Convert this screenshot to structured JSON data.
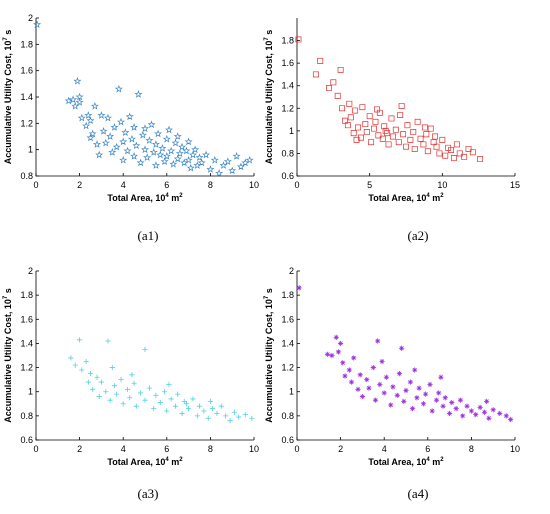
{
  "chart_data": [
    {
      "type": "scatter",
      "caption": "(a1)",
      "xlabel": "Total Area, 10",
      "xlabel_sup": "4",
      "xlabel_unit": " m",
      "xlabel_unit_sup": "2",
      "ylabel": "Accumulative Utility Cost, 10",
      "ylabel_sup": "7",
      "ylabel_unit": " s",
      "xlim": [
        0,
        10
      ],
      "ylim": [
        0.8,
        2
      ],
      "xticks": [
        0,
        2,
        4,
        6,
        8,
        10
      ],
      "xtick_labels": [
        "0",
        "2",
        "4",
        "6",
        "8",
        "10"
      ],
      "yticks": [
        0.8,
        1,
        1.2,
        1.4,
        1.6,
        1.8,
        2
      ],
      "ytick_labels": [
        "0.8",
        "1",
        "1.2",
        "1.4",
        "1.6",
        "1.8",
        "2"
      ],
      "marker": "star",
      "color": "#3a87c8",
      "grid": false,
      "points": [
        [
          0.05,
          1.95
        ],
        [
          1.5,
          1.37
        ],
        [
          1.7,
          1.38
        ],
        [
          1.8,
          1.33
        ],
        [
          1.9,
          1.52
        ],
        [
          2.0,
          1.4
        ],
        [
          2.0,
          1.36
        ],
        [
          2.1,
          1.24
        ],
        [
          2.3,
          1.18
        ],
        [
          2.4,
          1.26
        ],
        [
          2.5,
          1.22
        ],
        [
          2.5,
          1.09
        ],
        [
          2.6,
          1.12
        ],
        [
          2.7,
          1.33
        ],
        [
          2.8,
          1.04
        ],
        [
          2.9,
          0.96
        ],
        [
          3.0,
          1.26
        ],
        [
          3.1,
          1.14
        ],
        [
          3.2,
          1.05
        ],
        [
          3.3,
          1.24
        ],
        [
          3.4,
          1.1
        ],
        [
          3.5,
          0.98
        ],
        [
          3.6,
          1.17
        ],
        [
          3.7,
          1.02
        ],
        [
          3.8,
          1.46
        ],
        [
          3.9,
          1.21
        ],
        [
          4.0,
          0.92
        ],
        [
          4.0,
          1.06
        ],
        [
          4.1,
          1.13
        ],
        [
          4.2,
          0.99
        ],
        [
          4.3,
          1.25
        ],
        [
          4.4,
          1.08
        ],
        [
          4.5,
          0.95
        ],
        [
          4.5,
          1.17
        ],
        [
          4.6,
          1.03
        ],
        [
          4.7,
          1.42
        ],
        [
          4.8,
          0.9
        ],
        [
          4.9,
          1.11
        ],
        [
          5.0,
          1.0
        ],
        [
          5.0,
          1.16
        ],
        [
          5.1,
          0.94
        ],
        [
          5.2,
          1.07
        ],
        [
          5.3,
          1.19
        ],
        [
          5.4,
          0.98
        ],
        [
          5.5,
          1.04
        ],
        [
          5.5,
          0.88
        ],
        [
          5.6,
          1.12
        ],
        [
          5.7,
          0.96
        ],
        [
          5.8,
          1.01
        ],
        [
          5.9,
          0.91
        ],
        [
          6.0,
          1.08
        ],
        [
          6.0,
          0.95
        ],
        [
          6.1,
          1.15
        ],
        [
          6.2,
          0.99
        ],
        [
          6.3,
          0.89
        ],
        [
          6.4,
          1.05
        ],
        [
          6.5,
          0.93
        ],
        [
          6.5,
          1.1
        ],
        [
          6.6,
          0.97
        ],
        [
          6.7,
          1.02
        ],
        [
          6.8,
          0.9
        ],
        [
          6.9,
          0.99
        ],
        [
          7.0,
          1.06
        ],
        [
          7.0,
          0.92
        ],
        [
          7.1,
          0.86
        ],
        [
          7.2,
          0.96
        ],
        [
          7.3,
          1.0
        ],
        [
          7.4,
          0.88
        ],
        [
          7.5,
          0.94
        ],
        [
          7.6,
          0.9
        ],
        [
          7.8,
          0.96
        ],
        [
          8.0,
          0.85
        ],
        [
          8.2,
          0.92
        ],
        [
          8.4,
          0.82
        ],
        [
          8.6,
          0.88
        ],
        [
          8.8,
          0.91
        ],
        [
          9.0,
          0.84
        ],
        [
          9.2,
          0.95
        ],
        [
          9.4,
          0.87
        ],
        [
          9.6,
          0.9
        ],
        [
          9.8,
          0.92
        ]
      ]
    },
    {
      "type": "scatter",
      "caption": "(a2)",
      "xlabel": "Total Area, 10",
      "xlabel_sup": "4",
      "xlabel_unit": " m",
      "xlabel_unit_sup": "2",
      "ylabel": "Accumulative Utility Cost, 10",
      "ylabel_sup": "7",
      "ylabel_unit": " s",
      "xlim": [
        0,
        15
      ],
      "ylim": [
        0.6,
        2
      ],
      "xticks": [
        0,
        5,
        10,
        15
      ],
      "xtick_labels": [
        "0",
        "5",
        "10",
        "15"
      ],
      "yticks": [
        0.6,
        0.8,
        1,
        1.2,
        1.4,
        1.6,
        1.8
      ],
      "ytick_labels": [
        "0.6",
        "0.8",
        "1",
        "1.2",
        "1.4",
        "1.6",
        "1.8"
      ],
      "marker": "square",
      "color": "#e03030",
      "grid": false,
      "points": [
        [
          0.1,
          1.81
        ],
        [
          1.3,
          1.5
        ],
        [
          1.6,
          1.62
        ],
        [
          2.5,
          1.43
        ],
        [
          2.8,
          1.31
        ],
        [
          3.0,
          1.54
        ],
        [
          3.1,
          1.2
        ],
        [
          3.3,
          1.09
        ],
        [
          3.5,
          1.05
        ],
        [
          3.7,
          1.12
        ],
        [
          3.9,
          0.98
        ],
        [
          4.0,
          1.18
        ],
        [
          4.2,
          1.03
        ],
        [
          4.4,
          0.94
        ],
        [
          4.5,
          1.21
        ],
        [
          4.7,
          1.06
        ],
        [
          4.8,
          0.99
        ],
        [
          5.0,
          1.13
        ],
        [
          5.1,
          0.9
        ],
        [
          5.3,
          1.02
        ],
        [
          5.4,
          1.08
        ],
        [
          5.6,
          0.96
        ],
        [
          5.7,
          1.16
        ],
        [
          5.9,
          0.93
        ],
        [
          6.0,
          1.04
        ],
        [
          6.2,
          0.98
        ],
        [
          6.3,
          0.88
        ],
        [
          6.5,
          1.11
        ],
        [
          6.6,
          0.95
        ],
        [
          6.8,
          1.01
        ],
        [
          7.0,
          0.9
        ],
        [
          7.1,
          1.14
        ],
        [
          7.3,
          0.97
        ],
        [
          7.5,
          0.86
        ],
        [
          7.6,
          1.05
        ],
        [
          7.8,
          0.92
        ],
        [
          8.0,
          0.99
        ],
        [
          8.1,
          0.84
        ],
        [
          8.3,
          1.08
        ],
        [
          8.5,
          0.93
        ],
        [
          8.7,
          0.88
        ],
        [
          8.9,
          0.97
        ],
        [
          9.0,
          0.82
        ],
        [
          9.2,
          1.02
        ],
        [
          9.4,
          0.9
        ],
        [
          9.6,
          0.86
        ],
        [
          9.8,
          0.8
        ],
        [
          10.0,
          0.92
        ],
        [
          10.2,
          0.78
        ],
        [
          10.4,
          0.85
        ],
        [
          10.6,
          0.83
        ],
        [
          10.8,
          0.76
        ],
        [
          11.0,
          0.88
        ],
        [
          11.2,
          0.8
        ],
        [
          11.5,
          0.77
        ],
        [
          11.8,
          0.84
        ],
        [
          12.1,
          0.81
        ],
        [
          12.6,
          0.75
        ],
        [
          2.2,
          1.38
        ],
        [
          3.6,
          1.24
        ],
        [
          4.1,
          0.92
        ],
        [
          5.5,
          1.19
        ],
        [
          6.1,
          1.0
        ],
        [
          7.2,
          1.22
        ],
        [
          8.8,
          1.03
        ],
        [
          9.5,
          0.95
        ]
      ]
    },
    {
      "type": "scatter",
      "caption": "(a3)",
      "xlabel": "Total Area, 10",
      "xlabel_sup": "4",
      "xlabel_unit": " m",
      "xlabel_unit_sup": "2",
      "ylabel": "Accumulative Utility Cost, 10",
      "ylabel_sup": "7",
      "ylabel_unit": " s",
      "xlim": [
        0,
        10
      ],
      "ylim": [
        0.6,
        2
      ],
      "xticks": [
        0,
        2,
        4,
        6,
        8,
        10
      ],
      "xtick_labels": [
        "0",
        "2",
        "4",
        "6",
        "8",
        "10"
      ],
      "yticks": [
        0.6,
        0.8,
        1,
        1.2,
        1.4,
        1.6,
        1.8,
        2
      ],
      "ytick_labels": [
        "0.6",
        "0.8",
        "1",
        "1.2",
        "1.4",
        "1.6",
        "1.8",
        "2"
      ],
      "marker": "plus",
      "color": "#4fd2de",
      "grid": false,
      "points": [
        [
          1.6,
          1.28
        ],
        [
          1.8,
          1.22
        ],
        [
          2.0,
          1.43
        ],
        [
          2.1,
          1.18
        ],
        [
          2.3,
          1.25
        ],
        [
          2.4,
          1.08
        ],
        [
          2.5,
          1.15
        ],
        [
          2.6,
          1.02
        ],
        [
          2.8,
          1.12
        ],
        [
          2.9,
          0.96
        ],
        [
          3.0,
          1.08
        ],
        [
          3.2,
          1.0
        ],
        [
          3.3,
          1.42
        ],
        [
          3.4,
          0.93
        ],
        [
          3.6,
          1.05
        ],
        [
          3.7,
          0.98
        ],
        [
          3.9,
          1.1
        ],
        [
          4.0,
          0.9
        ],
        [
          4.2,
          1.02
        ],
        [
          4.3,
          0.95
        ],
        [
          4.5,
          1.07
        ],
        [
          4.6,
          0.88
        ],
        [
          4.8,
          0.99
        ],
        [
          5.0,
          1.35
        ],
        [
          5.0,
          0.93
        ],
        [
          5.2,
          1.03
        ],
        [
          5.4,
          0.86
        ],
        [
          5.5,
          0.97
        ],
        [
          5.7,
          0.91
        ],
        [
          5.9,
          1.0
        ],
        [
          6.0,
          0.84
        ],
        [
          6.2,
          0.94
        ],
        [
          6.4,
          0.88
        ],
        [
          6.5,
          0.98
        ],
        [
          6.7,
          0.82
        ],
        [
          6.9,
          0.9
        ],
        [
          7.0,
          0.86
        ],
        [
          7.2,
          0.94
        ],
        [
          7.4,
          0.8
        ],
        [
          7.5,
          0.88
        ],
        [
          7.7,
          0.84
        ],
        [
          7.9,
          0.78
        ],
        [
          8.1,
          0.86
        ],
        [
          8.3,
          0.82
        ],
        [
          8.5,
          0.88
        ],
        [
          8.7,
          0.8
        ],
        [
          8.9,
          0.76
        ],
        [
          9.1,
          0.83
        ],
        [
          9.3,
          0.79
        ],
        [
          9.6,
          0.81
        ],
        [
          9.9,
          0.78
        ],
        [
          3.5,
          1.2
        ],
        [
          4.4,
          1.14
        ],
        [
          6.1,
          1.06
        ],
        [
          6.8,
          0.92
        ],
        [
          8.0,
          0.92
        ]
      ]
    },
    {
      "type": "scatter",
      "caption": "(a4)",
      "xlabel": "Total Area, 10",
      "xlabel_sup": "4",
      "xlabel_unit": " m",
      "xlabel_unit_sup": "2",
      "ylabel": "Accumulative Utility Cost, 10",
      "ylabel_sup": "7",
      "ylabel_unit": " s",
      "xlim": [
        0,
        10
      ],
      "ylim": [
        0.6,
        2
      ],
      "xticks": [
        0,
        2,
        4,
        6,
        8,
        10
      ],
      "xtick_labels": [
        "0",
        "2",
        "4",
        "6",
        "8",
        "10"
      ],
      "yticks": [
        0.6,
        0.8,
        1,
        1.2,
        1.4,
        1.6,
        1.8,
        2
      ],
      "ytick_labels": [
        "0.6",
        "0.8",
        "1",
        "1.2",
        "1.4",
        "1.6",
        "1.8",
        "2"
      ],
      "marker": "asterisk",
      "color": "#9b30e0",
      "grid": false,
      "points": [
        [
          0.1,
          1.86
        ],
        [
          1.4,
          1.31
        ],
        [
          1.6,
          1.3
        ],
        [
          1.8,
          1.45
        ],
        [
          1.9,
          1.33
        ],
        [
          2.0,
          1.4
        ],
        [
          2.1,
          1.24
        ],
        [
          2.2,
          1.13
        ],
        [
          2.4,
          1.18
        ],
        [
          2.5,
          1.08
        ],
        [
          2.6,
          1.28
        ],
        [
          2.8,
          1.02
        ],
        [
          2.9,
          1.14
        ],
        [
          3.0,
          0.96
        ],
        [
          3.2,
          1.1
        ],
        [
          3.3,
          1.03
        ],
        [
          3.5,
          1.2
        ],
        [
          3.6,
          0.93
        ],
        [
          3.7,
          1.42
        ],
        [
          3.8,
          1.06
        ],
        [
          4.0,
          0.99
        ],
        [
          4.1,
          1.12
        ],
        [
          4.3,
          0.89
        ],
        [
          4.4,
          1.04
        ],
        [
          4.6,
          0.97
        ],
        [
          4.7,
          1.15
        ],
        [
          4.8,
          1.36
        ],
        [
          4.9,
          0.92
        ],
        [
          5.0,
          1.01
        ],
        [
          5.2,
          1.08
        ],
        [
          5.3,
          0.86
        ],
        [
          5.5,
          0.95
        ],
        [
          5.6,
          1.03
        ],
        [
          5.8,
          0.9
        ],
        [
          5.9,
          0.98
        ],
        [
          6.1,
          1.06
        ],
        [
          6.2,
          0.84
        ],
        [
          6.4,
          0.93
        ],
        [
          6.5,
          0.99
        ],
        [
          6.7,
          0.88
        ],
        [
          6.8,
          0.95
        ],
        [
          7.0,
          0.82
        ],
        [
          7.1,
          0.91
        ],
        [
          7.3,
          0.86
        ],
        [
          7.5,
          0.93
        ],
        [
          7.6,
          0.8
        ],
        [
          7.8,
          0.88
        ],
        [
          8.0,
          0.84
        ],
        [
          8.2,
          0.81
        ],
        [
          8.4,
          0.87
        ],
        [
          8.6,
          0.83
        ],
        [
          8.8,
          0.78
        ],
        [
          9.0,
          0.85
        ],
        [
          9.3,
          0.82
        ],
        [
          9.6,
          0.8
        ],
        [
          9.8,
          0.77
        ],
        [
          5.4,
          1.18
        ],
        [
          6.6,
          1.12
        ],
        [
          8.7,
          0.92
        ],
        [
          3.9,
          1.25
        ]
      ]
    }
  ]
}
